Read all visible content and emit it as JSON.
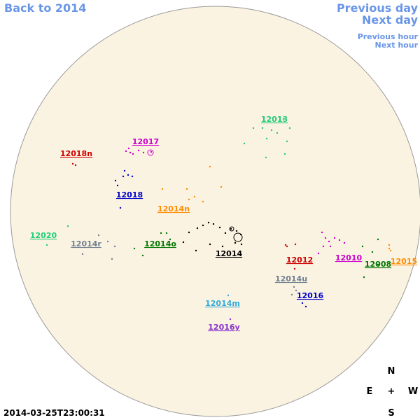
{
  "nav": {
    "back": "Back to 2014",
    "previous_day": "Previous day",
    "next_day": "Next day",
    "previous_hour": "Previous hour",
    "next_hour": "Next hour"
  },
  "regions": [
    {
      "label": "12013",
      "color": "#22cc77"
    },
    {
      "label": "12017",
      "color": "#cc00cc"
    },
    {
      "label": "12018n",
      "color": "#cc0000"
    },
    {
      "label": "12018",
      "color": "#0000cc"
    },
    {
      "label": "12014n",
      "color": "#ff8c00"
    },
    {
      "label": "12020",
      "color": "#22cc77"
    },
    {
      "label": "12014r",
      "color": "#708090"
    },
    {
      "label": "12014o",
      "color": "#007700"
    },
    {
      "label": "12014",
      "color": "#000000"
    },
    {
      "label": "12012",
      "color": "#cc0000"
    },
    {
      "label": "12010",
      "color": "#cc00cc"
    },
    {
      "label": "12008",
      "color": "#007700"
    },
    {
      "label": "12015",
      "color": "#ff8c00"
    },
    {
      "label": "12014u",
      "color": "#708090"
    },
    {
      "label": "12016",
      "color": "#0000cc"
    },
    {
      "label": "12014m",
      "color": "#33aadd"
    },
    {
      "label": "12016y",
      "color": "#8833cc"
    }
  ],
  "compass": {
    "north": "N",
    "east": "E",
    "center": "+",
    "west": "W",
    "south": "S"
  },
  "timestamp": "2014-03-25T23:00:31"
}
